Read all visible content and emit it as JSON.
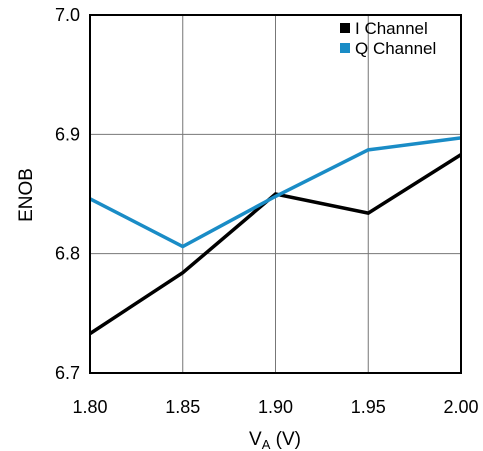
{
  "chart_data": {
    "type": "line",
    "xlabel_main": "V",
    "xlabel_sub": "A",
    "xlabel_unit": " (V)",
    "ylabel": "ENOB",
    "xlim": [
      1.8,
      2.0
    ],
    "ylim": [
      6.7,
      7.0
    ],
    "x_ticks": [
      "1.80",
      "1.85",
      "1.90",
      "1.95",
      "2.00"
    ],
    "y_ticks": [
      "6.7",
      "6.8",
      "6.9",
      "7.0"
    ],
    "grid": true,
    "legend_position": "top-right",
    "series": [
      {
        "name": "I Channel",
        "color": "#000000",
        "x": [
          1.8,
          1.85,
          1.9,
          1.95,
          2.0
        ],
        "y": [
          6.733,
          6.784,
          6.85,
          6.834,
          6.883
        ]
      },
      {
        "name": "Q Channel",
        "color": "#1a8cc6",
        "x": [
          1.8,
          1.85,
          1.9,
          1.95,
          2.0
        ],
        "y": [
          6.846,
          6.806,
          6.848,
          6.887,
          6.897
        ]
      }
    ]
  }
}
